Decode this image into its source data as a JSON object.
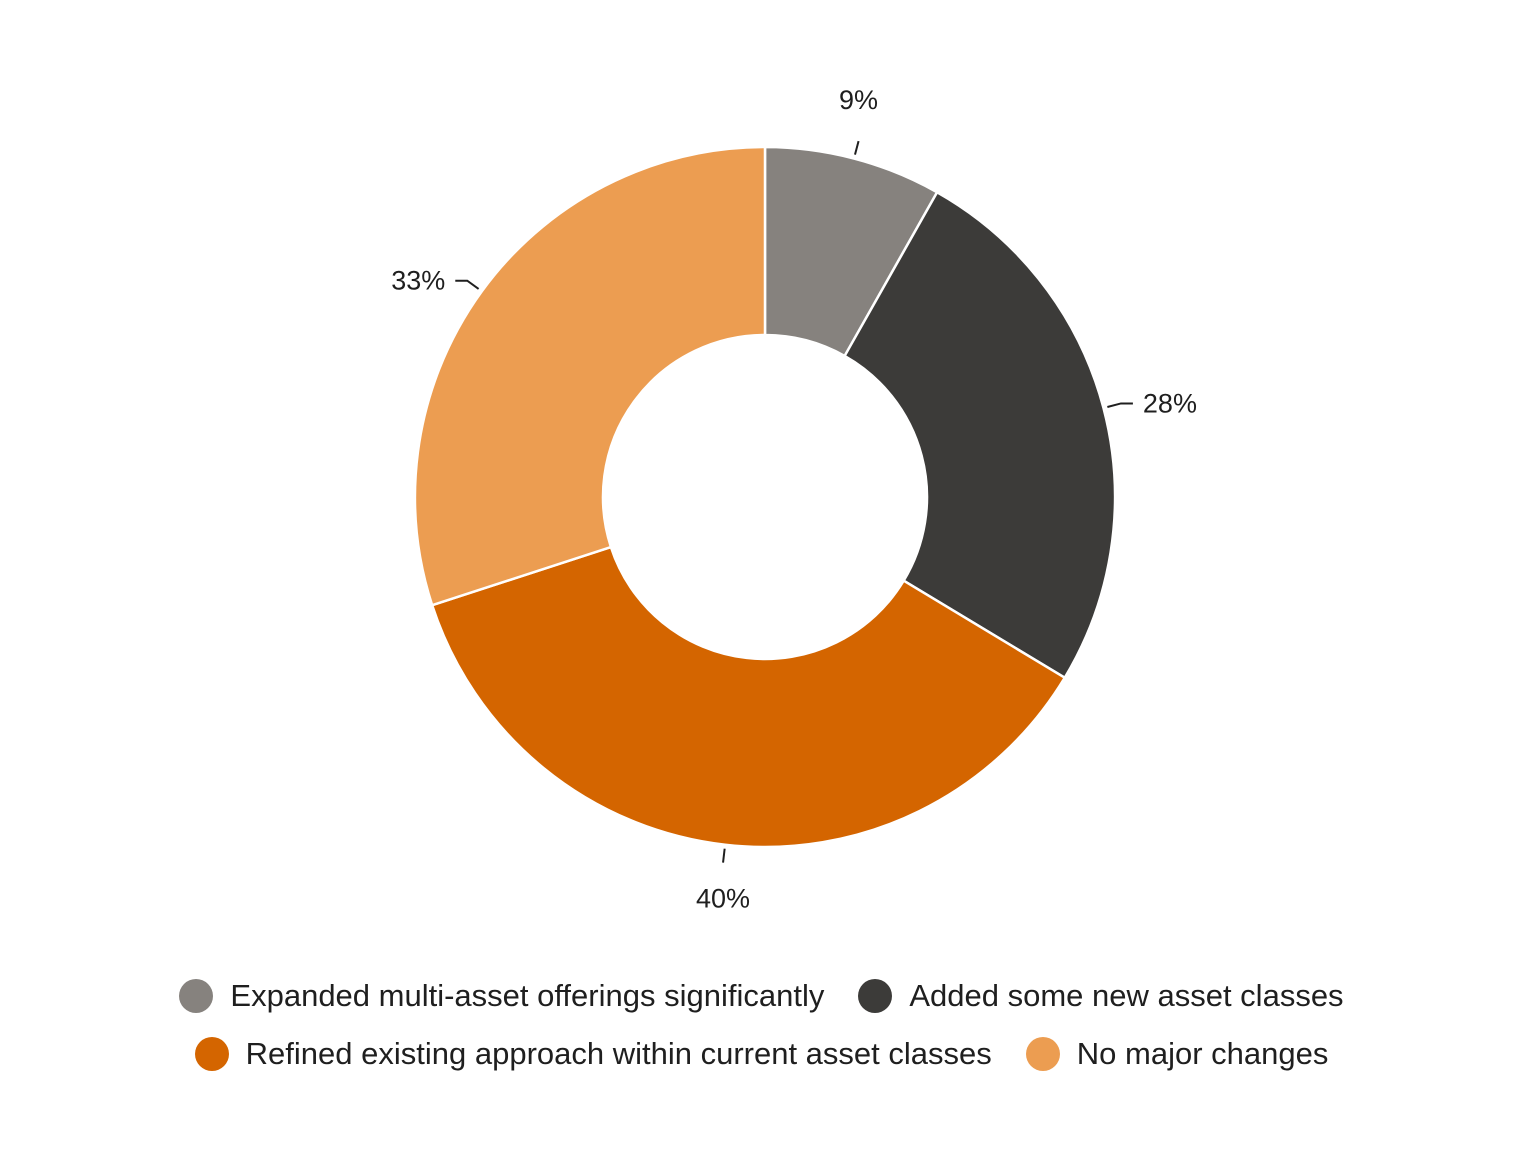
{
  "chart_data": {
    "type": "pie",
    "title": "",
    "donut": true,
    "legend_position": "bottom",
    "slices": [
      {
        "name": "Expanded multi-asset offerings significantly",
        "value": 9,
        "label": "9%",
        "color": "#86827e"
      },
      {
        "name": "Added some new asset classes",
        "value": 28,
        "label": "28%",
        "color": "#3c3b39"
      },
      {
        "name": "Refined existing approach within current asset classes",
        "value": 40,
        "label": "40%",
        "color": "#d46500"
      },
      {
        "name": "No major changes",
        "value": 33,
        "label": "33%",
        "color": "#ec9d51"
      }
    ]
  }
}
